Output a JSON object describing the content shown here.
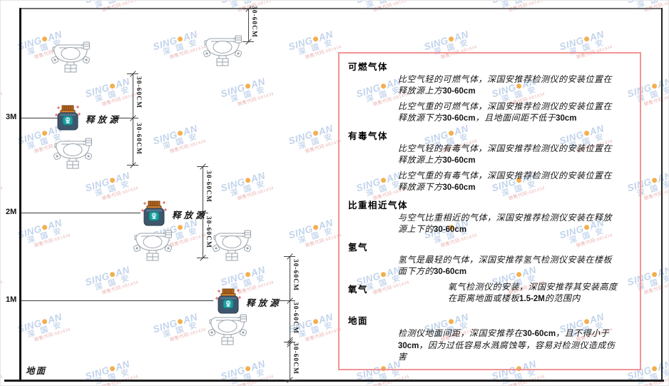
{
  "watermark": {
    "brand_prefix": "SING",
    "brand_suffix": "AN",
    "brand_cn": "深 国 安",
    "sales_text": "销售代码:681434",
    "brand_color": "#bccfe9",
    "dot_color": "#f2a73d",
    "sales_color": "#e8a8a8"
  },
  "diagram": {
    "height_markers": [
      "3M",
      "2M",
      "1M"
    ],
    "dimension_label": "30-60CM",
    "release_source_label": "释放源",
    "ground_label": "地面"
  },
  "panel": {
    "border_color": "#f49393",
    "sections": [
      {
        "title": "可燃气体",
        "paragraphs": [
          "比空气轻的可燃气体，深国安推荐检测仪的安装位置在释放源上方30-60cm",
          "比空气重的可燃气体，深国安推荐检测仪的安装位置在释放源下方30-60cm，且地面间距不低于30cm"
        ]
      },
      {
        "title": "有毒气体",
        "paragraphs": [
          "比空气轻的有毒气体，深国安推荐检测仪的安装位置在释放源上方30-60cm",
          "比空气重的有毒气体，深国安推荐检测仪的安装位置在释放源下方30-60cm"
        ]
      },
      {
        "title": "比重相近气体",
        "paragraphs": [
          "与空气比重相近的气体，深国安推荐检测仪安装在释放源上下的30-60cm"
        ]
      },
      {
        "title": "氢气",
        "paragraphs": [
          "氢气是最轻的气体，深国安推荐氢气检测仪安装在楼板面下方的30-60cm"
        ]
      },
      {
        "title": "氧气",
        "inline": true,
        "paragraphs": [
          "氧气检测仪的安装，深国安推荐其安装高度在距离地面或楼板1.5-2M的范围内"
        ]
      },
      {
        "title": "地面",
        "gap": true,
        "paragraphs": [
          "检测仪地面间距，深国安推荐在30-60cm，且不得小于30cm，因为过低容易水溅腐蚀等，容易对检测仪造成伤害"
        ]
      }
    ]
  }
}
